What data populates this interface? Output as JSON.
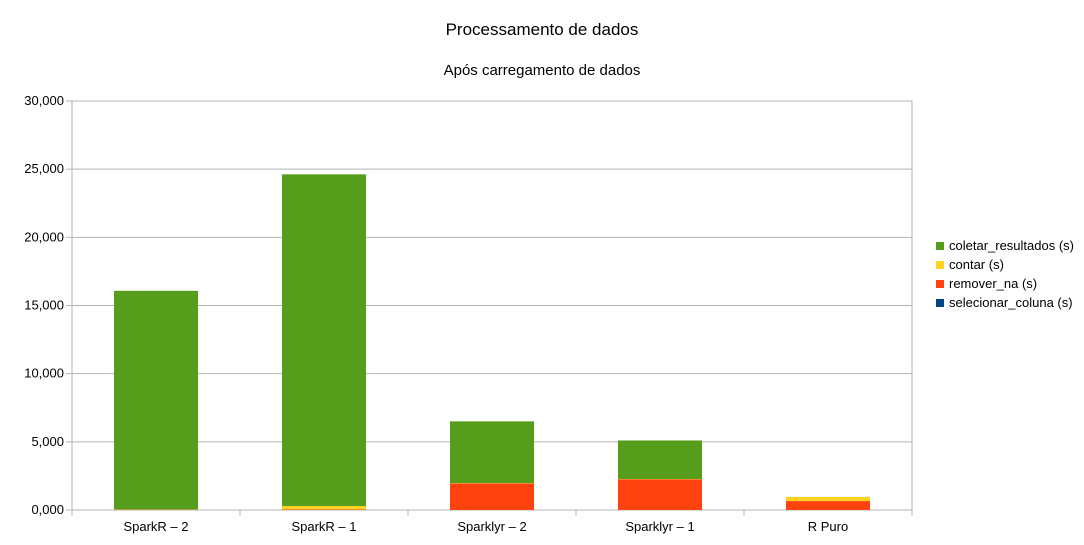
{
  "chart_data": {
    "type": "bar",
    "stacked": true,
    "title": "Processamento de dados",
    "subtitle": "Após carregamento de dados",
    "categories": [
      "SparkR – 2",
      "SparkR – 1",
      "Sparklyr – 2",
      "Sparklyr – 1",
      "R Puro"
    ],
    "y_ticks": [
      "0,000",
      "5,000",
      "10,000",
      "15,000",
      "20,000",
      "25,000",
      "30,000"
    ],
    "ylim": [
      0,
      30000
    ],
    "grid": true,
    "legend_position": "right",
    "series": [
      {
        "name": "selecionar_coluna (s)",
        "color": "#004586",
        "values": [
          10,
          10,
          5,
          5,
          5
        ]
      },
      {
        "name": "remover_na (s)",
        "color": "#ff420e",
        "values": [
          20,
          30,
          1950,
          2250,
          650
        ]
      },
      {
        "name": "contar (s)",
        "color": "#ffd320",
        "values": [
          20,
          250,
          20,
          20,
          300
        ]
      },
      {
        "name": "coletar_resultados (s)",
        "color": "#579d1c",
        "values": [
          16030,
          24330,
          4525,
          2825,
          5
        ]
      }
    ],
    "legend_order": [
      3,
      2,
      1,
      0
    ]
  }
}
